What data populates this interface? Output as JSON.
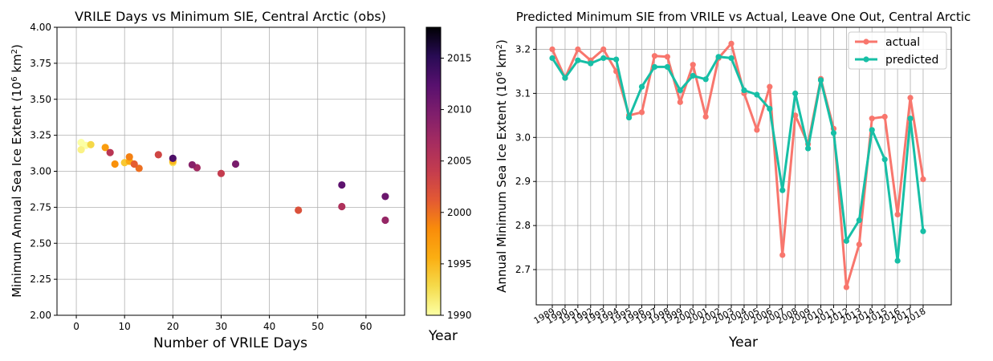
{
  "chart_data": [
    {
      "type": "scatter",
      "title": "VRILE Days vs Minimum SIE, Central Arctic (obs)",
      "xlabel": "Number of VRILE Days",
      "ylabel": "Minimum Annual Sea Ice Extent (10",
      "ylabel_sup": "6",
      "ylabel_unit": " km",
      "ylabel_unit_sup": "2",
      "ylabel_end": ")",
      "xlim": [
        -4,
        68
      ],
      "ylim": [
        2.0,
        4.0
      ],
      "xticks": [
        0,
        10,
        20,
        30,
        40,
        50,
        60
      ],
      "yticks": [
        2.0,
        2.25,
        2.5,
        2.75,
        3.0,
        3.25,
        3.5,
        3.75,
        4.0
      ],
      "ytick_labels": [
        "2.00",
        "2.25",
        "2.50",
        "2.75",
        "3.00",
        "3.25",
        "3.50",
        "3.75",
        "4.00"
      ],
      "grid": true,
      "colorbar": {
        "label": "Year",
        "colormap": "inferno_r",
        "range": [
          1990,
          2018
        ],
        "ticks": [
          1990,
          1995,
          2000,
          2005,
          2010,
          2015
        ]
      },
      "points": [
        {
          "year": 1989,
          "x": 1,
          "y": 3.2
        },
        {
          "year": 1990,
          "x": 2,
          "y": 3.18
        },
        {
          "year": 1991,
          "x": 1,
          "y": 3.15
        },
        {
          "year": 1992,
          "x": 20,
          "y": 3.06
        },
        {
          "year": 1993,
          "x": 3,
          "y": 3.185
        },
        {
          "year": 1994,
          "x": 10,
          "y": 3.06
        },
        {
          "year": 1995,
          "x": 20,
          "y": 3.07
        },
        {
          "year": 1996,
          "x": 11,
          "y": 3.07
        },
        {
          "year": 1997,
          "x": 6,
          "y": 3.165
        },
        {
          "year": 1998,
          "x": 8,
          "y": 3.05
        },
        {
          "year": 1999,
          "x": 11,
          "y": 3.1
        },
        {
          "year": 2000,
          "x": 13,
          "y": 3.02
        },
        {
          "year": 2001,
          "x": 12,
          "y": 3.05
        },
        {
          "year": 2002,
          "x": 46,
          "y": 2.73
        },
        {
          "year": 2003,
          "x": 17,
          "y": 3.115
        },
        {
          "year": 2004,
          "x": 30,
          "y": 2.985
        },
        {
          "year": 2005,
          "x": 7,
          "y": 3.13
        },
        {
          "year": 2006,
          "x": 55,
          "y": 2.755
        },
        {
          "year": 2007,
          "x": 25,
          "y": 3.025
        },
        {
          "year": 2008,
          "x": 64,
          "y": 2.66
        },
        {
          "year": 2009,
          "x": 24,
          "y": 3.045
        },
        {
          "year": 2010,
          "x": 33,
          "y": 3.05
        },
        {
          "year": 2011,
          "x": 64,
          "y": 2.825
        },
        {
          "year": 2012,
          "x": 55,
          "y": 2.905
        },
        {
          "year": 2013,
          "x": 20,
          "y": 3.09
        }
      ]
    },
    {
      "type": "line",
      "title": "Predicted Minimum SIE from VRILE vs Actual, Leave One Out, Central Arctic",
      "xlabel": "Year",
      "ylabel": "Annual Minimum Sea Ice Extent (10",
      "ylabel_sup": "6",
      "ylabel_unit": " km",
      "ylabel_unit_sup": "2",
      "ylabel_end": ")",
      "ylim": [
        2.62,
        3.25
      ],
      "yticks": [
        2.7,
        2.8,
        2.9,
        3.0,
        3.1,
        3.2
      ],
      "ytick_labels": [
        "2.7",
        "2.8",
        "2.9",
        "3.0",
        "3.1",
        "3.2"
      ],
      "grid": true,
      "legend": "top-right",
      "x": [
        "1989",
        "1990",
        "1991",
        "1992",
        "1993",
        "1994",
        "1995",
        "1996",
        "1997",
        "1998",
        "1999",
        "2000",
        "2001",
        "2002",
        "2003",
        "2004",
        "2005",
        "2006",
        "2007",
        "2008",
        "2009",
        "2010",
        "2011",
        "2012",
        "2013",
        "2014",
        "2015",
        "2016",
        "2017",
        "2018"
      ],
      "series": [
        {
          "name": "actual",
          "color": "#f8766d",
          "values": [
            3.2,
            3.135,
            3.2,
            3.175,
            3.2,
            3.15,
            3.05,
            3.057,
            3.185,
            3.183,
            3.08,
            3.165,
            3.047,
            3.18,
            3.213,
            3.1,
            3.017,
            3.115,
            2.733,
            3.05,
            2.985,
            3.133,
            3.02,
            2.66,
            2.757,
            3.043,
            3.047,
            2.825,
            3.09,
            2.905
          ]
        },
        {
          "name": "predicted",
          "color": "#17bfa6",
          "values": [
            3.18,
            3.135,
            3.175,
            3.168,
            3.18,
            3.177,
            3.045,
            3.115,
            3.16,
            3.16,
            3.107,
            3.14,
            3.132,
            3.183,
            3.18,
            3.107,
            3.097,
            3.065,
            2.88,
            3.1,
            2.975,
            3.13,
            3.01,
            2.765,
            2.812,
            3.017,
            2.95,
            2.72,
            3.043,
            2.787
          ]
        }
      ]
    }
  ]
}
